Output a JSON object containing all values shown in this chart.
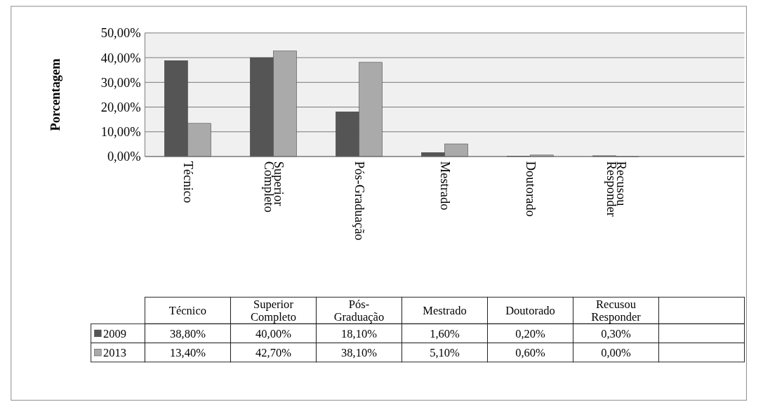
{
  "chart_data": {
    "type": "bar",
    "ylabel": "Porcentagem",
    "categories": [
      "Técnico",
      "Superior Completo",
      "Pós-Graduação",
      "Mestrado",
      "Doutorado",
      "Recusou Responder",
      null
    ],
    "series": [
      {
        "name": "2009",
        "color": "#555555",
        "values": [
          38.8,
          40.0,
          18.1,
          1.6,
          0.2,
          0.3,
          null
        ],
        "value_labels": [
          "38,80%",
          "40,00%",
          "18,10%",
          "1,60%",
          "0,20%",
          "0,30%",
          null
        ]
      },
      {
        "name": "2013",
        "color": "#aaaaaa",
        "values": [
          13.4,
          42.7,
          38.1,
          5.1,
          0.6,
          0.0,
          null
        ],
        "value_labels": [
          "13,40%",
          "42,70%",
          "38,10%",
          "5,10%",
          "0,60%",
          "0,00%",
          null
        ]
      }
    ],
    "ylim": [
      0,
      50
    ],
    "yticks": [
      {
        "value": 0,
        "label": "0,00%"
      },
      {
        "value": 10,
        "label": "10,00%"
      },
      {
        "value": 20,
        "label": "20,00%"
      },
      {
        "value": 30,
        "label": "30,00%"
      },
      {
        "value": 40,
        "label": "40,00%"
      },
      {
        "value": 50,
        "label": "50,00%"
      }
    ],
    "grid": "y",
    "legend": "bottom"
  }
}
